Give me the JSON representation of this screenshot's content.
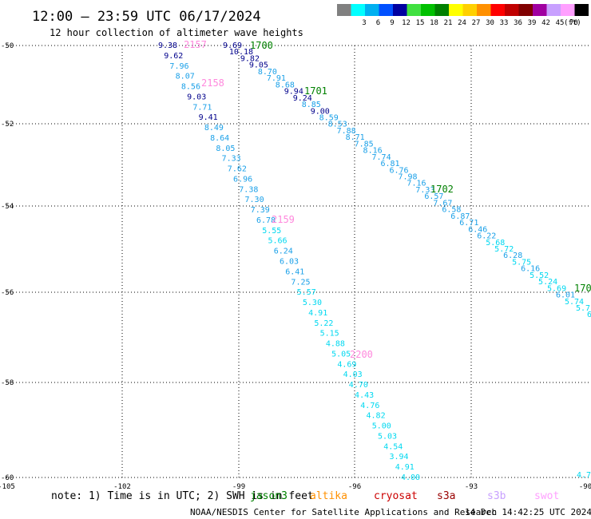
{
  "title": "12:00 – 23:59 UTC 06/17/2024",
  "subtitle": "12 hour collection of altimeter wave heights",
  "legend": {
    "unit": "(ft)",
    "items": [
      {
        "label": "",
        "color": "#808080"
      },
      {
        "label": "3",
        "color": "#00ffff"
      },
      {
        "label": "6",
        "color": "#00b0f0"
      },
      {
        "label": "9",
        "color": "#0050ff"
      },
      {
        "label": "12",
        "color": "#0000a0"
      },
      {
        "label": "15",
        "color": "#40e040"
      },
      {
        "label": "18",
        "color": "#00c000"
      },
      {
        "label": "21",
        "color": "#008000"
      },
      {
        "label": "24",
        "color": "#ffff00"
      },
      {
        "label": "27",
        "color": "#ffd000"
      },
      {
        "label": "30",
        "color": "#ff9000"
      },
      {
        "label": "33",
        "color": "#ff0000"
      },
      {
        "label": "36",
        "color": "#c00000"
      },
      {
        "label": "39",
        "color": "#800000"
      },
      {
        "label": "42",
        "color": "#a000a0"
      },
      {
        "label": "45",
        "color": "#c8a0ff"
      },
      {
        "label": "70",
        "color": "#ffa0ff"
      },
      {
        "label": "",
        "color": "#000000"
      }
    ]
  },
  "axes": {
    "x_ticks": [
      "-105",
      "-102",
      "-99",
      "-96",
      "-93",
      "-90"
    ],
    "y_ticks": [
      "-50",
      "-52",
      "-54",
      "-56",
      "-58",
      "-60"
    ]
  },
  "track_a": {
    "time_labels": [
      "2157",
      "2158",
      "2159",
      "2200"
    ],
    "time_color": "#ff88dd",
    "values": [
      "9.38",
      "9.62",
      "7.96",
      "8.07",
      "8.56",
      "9.03",
      "7.71",
      "9.41",
      "8.49",
      "8.64",
      "8.05",
      "7.33",
      "7.62",
      "6.96",
      "7.38",
      "7.30",
      "7.39",
      "6.78",
      "5.55",
      "5.66",
      "6.24",
      "6.03",
      "6.41",
      "7.25",
      "5.57",
      "5.30",
      "4.91",
      "5.22",
      "5.15",
      "4.88",
      "5.05",
      "4.69",
      "4.03",
      "4.70",
      "4.43",
      "4.76",
      "4.82",
      "5.00",
      "5.03",
      "4.54",
      "3.94",
      "4.91",
      "4.00"
    ]
  },
  "track_b": {
    "time_labels": [
      "1700",
      "1701",
      "1702",
      "170"
    ],
    "time_color": "#008000",
    "values": [
      "9.69",
      "10.18",
      "9.82",
      "9.05",
      "8.70",
      "7.91",
      "8.68",
      "9.94",
      "9.24",
      "8.85",
      "9.00",
      "8.59",
      "8.53",
      "7.88",
      "8.71",
      "7.85",
      "8.16",
      "7.74",
      "6.81",
      "6.76",
      "7.98",
      "7.16",
      "7.33",
      "6.57",
      "7.67",
      "6.58",
      "6.87",
      "6.71",
      "6.46",
      "6.22",
      "5.68",
      "5.72",
      "6.28",
      "5.75",
      "6.16",
      "5.52",
      "5.24",
      "5.69",
      "6.01",
      "5.74",
      "5.7"
    ],
    "edge_values": [
      "6",
      "4.7"
    ]
  },
  "note": {
    "text": "note: 1) Time is in UTC; 2) SWH is in feet",
    "satellites": [
      {
        "name": "jason3",
        "color": "#008000"
      },
      {
        "name": "altika",
        "color": "#ff9000"
      },
      {
        "name": "cryosat",
        "color": "#cc0000"
      },
      {
        "name": "s3a",
        "color": "#990000"
      },
      {
        "name": "s3b",
        "color": "#c8a0ff"
      },
      {
        "name": "swot",
        "color": "#ffa0ff"
      }
    ]
  },
  "footer": {
    "credit": "NOAA/NESDIS Center for Satellite Applications and Research",
    "timestamp": "14 Dec 14:42:25 UTC 2024"
  }
}
